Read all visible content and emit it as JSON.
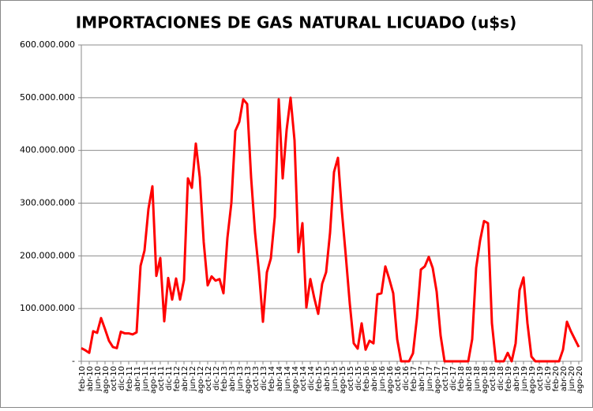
{
  "chart_data": {
    "type": "line",
    "title": "IMPORTACIONES DE GAS NATURAL LICUADO (u$s)",
    "categories": [
      "feb-10",
      null,
      "abr-10",
      null,
      "jun-10",
      null,
      "ago-10",
      null,
      "oct-10",
      null,
      "dic-10",
      null,
      "feb-11",
      null,
      "abr-11",
      null,
      "jun-11",
      null,
      "ago-11",
      null,
      "oct-11",
      null,
      "dic-11",
      null,
      "feb-12",
      null,
      "abr-12",
      null,
      "jun-12",
      null,
      "ago-12",
      null,
      "oct-12",
      null,
      "dic-12",
      null,
      "feb-13",
      null,
      "abr-13",
      null,
      "jun-13",
      null,
      "ago-13",
      null,
      "oct-13",
      null,
      "dic-13",
      null,
      "feb-14",
      null,
      "abr-14",
      null,
      "jun-14",
      null,
      "ago-14",
      null,
      "oct-14",
      null,
      "dic-14",
      null,
      "feb-15",
      null,
      "abr-15",
      null,
      "jun-15",
      null,
      "ago-15",
      null,
      "oct-15",
      null,
      "dic-15",
      null,
      "feb-16",
      null,
      "abr-16",
      null,
      "jun-16",
      null,
      "ago-16",
      null,
      "oct-16",
      null,
      "dic-16",
      null,
      "feb-17",
      null,
      "abr-17",
      null,
      "jun-17",
      null,
      "ago-17",
      null,
      "oct-17",
      null,
      "dic-17",
      null,
      "feb-18",
      null,
      "abr-18",
      null,
      "jun-18",
      null,
      "ago-18",
      null,
      "oct-18",
      null,
      "dic-18",
      null,
      "feb-19",
      null,
      "abr-19",
      null,
      "jun-19",
      null,
      "ago-19",
      null,
      "oct-19",
      null,
      "dic-19",
      null,
      "feb-20",
      null,
      "abr-20",
      null,
      "jun-20",
      null,
      "ago-20"
    ],
    "values": [
      25000000,
      21000000,
      16000000,
      57000000,
      54000000,
      82000000,
      61000000,
      39000000,
      27000000,
      25000000,
      56000000,
      53000000,
      53000000,
      51000000,
      55000000,
      181000000,
      210000000,
      289000000,
      332000000,
      162000000,
      196000000,
      76000000,
      158000000,
      117000000,
      157000000,
      117000000,
      154000000,
      347000000,
      329000000,
      413000000,
      349000000,
      226000000,
      144000000,
      161000000,
      153000000,
      156000000,
      129000000,
      234000000,
      300000000,
      437000000,
      454000000,
      497000000,
      488000000,
      349000000,
      244000000,
      169000000,
      75000000,
      169000000,
      195000000,
      274000000,
      497000000,
      347000000,
      439000000,
      500000000,
      419000000,
      207000000,
      262000000,
      102000000,
      156000000,
      120000000,
      90000000,
      147000000,
      169000000,
      244000000,
      359000000,
      386000000,
      284000000,
      199000000,
      109000000,
      34000000,
      24000000,
      72000000,
      22000000,
      39000000,
      34000000,
      127000000,
      129000000,
      180000000,
      156000000,
      129000000,
      42000000,
      0,
      0,
      0,
      15000000,
      82000000,
      174000000,
      180000000,
      198000000,
      177000000,
      132000000,
      49000000,
      0,
      0,
      0,
      0,
      0,
      0,
      0,
      42000000,
      177000000,
      229000000,
      266000000,
      262000000,
      72000000,
      0,
      0,
      0,
      16000000,
      0,
      34000000,
      135000000,
      159000000,
      72000000,
      9000000,
      0,
      0,
      0,
      0,
      0,
      0,
      0,
      22000000,
      75000000,
      57000000,
      42000000,
      27000000
    ],
    "color": "#ff0000",
    "ylim": [
      0,
      600000000
    ],
    "yticks": [
      {
        "value": 0,
        "label": "-"
      },
      {
        "value": 100000000,
        "label": "100.000.000"
      },
      {
        "value": 200000000,
        "label": "200.000.000"
      },
      {
        "value": 300000000,
        "label": "300.000.000"
      },
      {
        "value": 400000000,
        "label": "400.000.000"
      },
      {
        "value": 500000000,
        "label": "500.000.000"
      },
      {
        "value": 600000000,
        "label": "600.000.000"
      }
    ],
    "grid": true
  }
}
